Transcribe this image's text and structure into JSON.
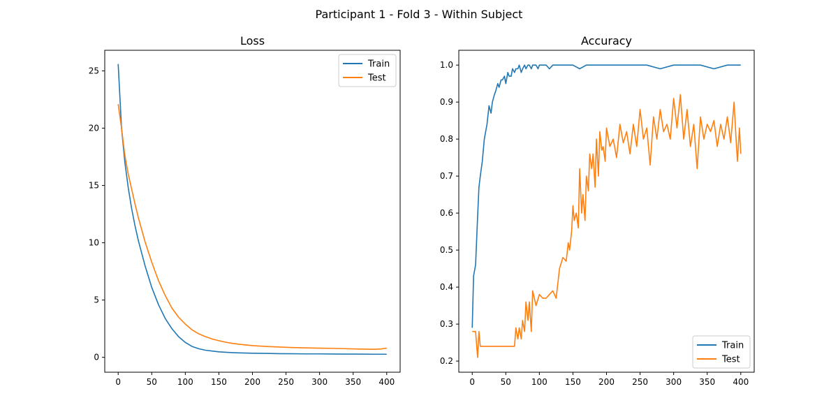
{
  "figure": {
    "title": "Participant 1 - Fold 3 - Within Subject"
  },
  "colors": {
    "train": "#1f77b4",
    "test": "#ff7f0e"
  },
  "chart_data": [
    {
      "type": "line",
      "title": "Loss",
      "xlabel": "",
      "ylabel": "",
      "xlim": [
        -20,
        420
      ],
      "ylim": [
        -1.3,
        26.8
      ],
      "xticks": [
        0,
        50,
        100,
        150,
        200,
        250,
        300,
        350,
        400
      ],
      "yticks": [
        0,
        5,
        10,
        15,
        20,
        25
      ],
      "legend_position": "upper right",
      "grid": false,
      "series": [
        {
          "name": "Train",
          "x": [
            0,
            5,
            10,
            15,
            20,
            25,
            30,
            40,
            50,
            60,
            70,
            80,
            90,
            100,
            110,
            120,
            130,
            140,
            150,
            160,
            170,
            180,
            190,
            200,
            220,
            240,
            260,
            280,
            300,
            320,
            340,
            360,
            380,
            390,
            400
          ],
          "y": [
            25.6,
            20.0,
            17.0,
            14.8,
            13.0,
            11.5,
            10.2,
            8.0,
            6.1,
            4.6,
            3.4,
            2.5,
            1.8,
            1.3,
            0.95,
            0.75,
            0.62,
            0.55,
            0.48,
            0.44,
            0.41,
            0.39,
            0.37,
            0.36,
            0.34,
            0.32,
            0.31,
            0.3,
            0.3,
            0.29,
            0.28,
            0.28,
            0.27,
            0.27,
            0.27
          ]
        },
        {
          "name": "Test",
          "x": [
            0,
            5,
            10,
            15,
            20,
            25,
            30,
            40,
            50,
            60,
            70,
            80,
            90,
            100,
            110,
            120,
            130,
            140,
            150,
            160,
            170,
            180,
            190,
            200,
            220,
            240,
            260,
            280,
            300,
            320,
            340,
            360,
            380,
            390,
            400
          ],
          "y": [
            22.1,
            20.0,
            17.6,
            16.0,
            14.7,
            13.4,
            12.2,
            10.1,
            8.3,
            6.7,
            5.4,
            4.3,
            3.5,
            2.9,
            2.4,
            2.05,
            1.8,
            1.6,
            1.45,
            1.32,
            1.22,
            1.14,
            1.08,
            1.02,
            0.95,
            0.9,
            0.85,
            0.82,
            0.8,
            0.78,
            0.75,
            0.72,
            0.7,
            0.72,
            0.8
          ]
        }
      ]
    },
    {
      "type": "line",
      "title": "Accuracy",
      "xlabel": "",
      "ylabel": "",
      "xlim": [
        -20,
        420
      ],
      "ylim": [
        0.17,
        1.04
      ],
      "xticks": [
        0,
        50,
        100,
        150,
        200,
        250,
        300,
        350,
        400
      ],
      "yticks": [
        0.2,
        0.3,
        0.4,
        0.5,
        0.6,
        0.7,
        0.8,
        0.9,
        1.0
      ],
      "legend_position": "lower right",
      "grid": false,
      "series": [
        {
          "name": "Train",
          "x": [
            0,
            2,
            5,
            8,
            10,
            12,
            15,
            18,
            20,
            22,
            25,
            28,
            30,
            33,
            35,
            38,
            40,
            43,
            45,
            48,
            50,
            53,
            55,
            58,
            60,
            63,
            65,
            68,
            70,
            73,
            75,
            78,
            80,
            83,
            85,
            88,
            90,
            93,
            95,
            98,
            100,
            105,
            110,
            115,
            120,
            130,
            140,
            150,
            160,
            170,
            180,
            200,
            220,
            240,
            260,
            280,
            300,
            320,
            340,
            360,
            380,
            390,
            400
          ],
          "y": [
            0.29,
            0.43,
            0.46,
            0.59,
            0.67,
            0.7,
            0.74,
            0.8,
            0.82,
            0.84,
            0.89,
            0.87,
            0.9,
            0.92,
            0.93,
            0.95,
            0.94,
            0.96,
            0.96,
            0.97,
            0.95,
            0.98,
            0.97,
            0.97,
            0.99,
            0.98,
            0.99,
            0.99,
            1.0,
            0.98,
            0.99,
            1.0,
            0.99,
            1.0,
            1.0,
            0.99,
            1.0,
            1.0,
            1.0,
            0.99,
            1.0,
            1.0,
            1.0,
            0.99,
            1.0,
            1.0,
            1.0,
            1.0,
            0.99,
            1.0,
            1.0,
            1.0,
            1.0,
            1.0,
            1.0,
            0.99,
            1.0,
            1.0,
            1.0,
            0.99,
            1.0,
            1.0,
            1.0
          ]
        },
        {
          "name": "Test",
          "x": [
            0,
            5,
            8,
            10,
            12,
            15,
            20,
            30,
            40,
            50,
            60,
            63,
            65,
            68,
            70,
            73,
            75,
            78,
            80,
            83,
            85,
            88,
            90,
            95,
            100,
            105,
            110,
            115,
            120,
            125,
            130,
            135,
            140,
            143,
            145,
            148,
            150,
            152,
            155,
            158,
            160,
            163,
            165,
            168,
            170,
            173,
            175,
            178,
            180,
            183,
            185,
            188,
            190,
            193,
            195,
            198,
            200,
            205,
            210,
            215,
            220,
            225,
            230,
            235,
            240,
            245,
            250,
            255,
            260,
            265,
            270,
            275,
            280,
            285,
            290,
            295,
            300,
            305,
            310,
            315,
            320,
            325,
            330,
            335,
            340,
            345,
            350,
            355,
            360,
            365,
            370,
            375,
            380,
            385,
            390,
            393,
            395,
            398,
            400
          ],
          "y": [
            0.28,
            0.28,
            0.21,
            0.28,
            0.24,
            0.24,
            0.24,
            0.24,
            0.24,
            0.24,
            0.24,
            0.24,
            0.29,
            0.26,
            0.29,
            0.26,
            0.31,
            0.28,
            0.36,
            0.31,
            0.36,
            0.28,
            0.39,
            0.35,
            0.38,
            0.37,
            0.37,
            0.38,
            0.39,
            0.37,
            0.45,
            0.48,
            0.47,
            0.52,
            0.5,
            0.55,
            0.62,
            0.58,
            0.6,
            0.56,
            0.72,
            0.6,
            0.65,
            0.58,
            0.7,
            0.66,
            0.76,
            0.72,
            0.76,
            0.67,
            0.8,
            0.7,
            0.82,
            0.77,
            0.78,
            0.74,
            0.83,
            0.78,
            0.8,
            0.75,
            0.84,
            0.79,
            0.82,
            0.76,
            0.84,
            0.78,
            0.88,
            0.8,
            0.83,
            0.73,
            0.86,
            0.8,
            0.88,
            0.82,
            0.84,
            0.8,
            0.91,
            0.83,
            0.92,
            0.8,
            0.88,
            0.78,
            0.84,
            0.72,
            0.86,
            0.8,
            0.84,
            0.82,
            0.85,
            0.78,
            0.84,
            0.8,
            0.86,
            0.79,
            0.9,
            0.8,
            0.74,
            0.83,
            0.76
          ]
        }
      ]
    }
  ]
}
